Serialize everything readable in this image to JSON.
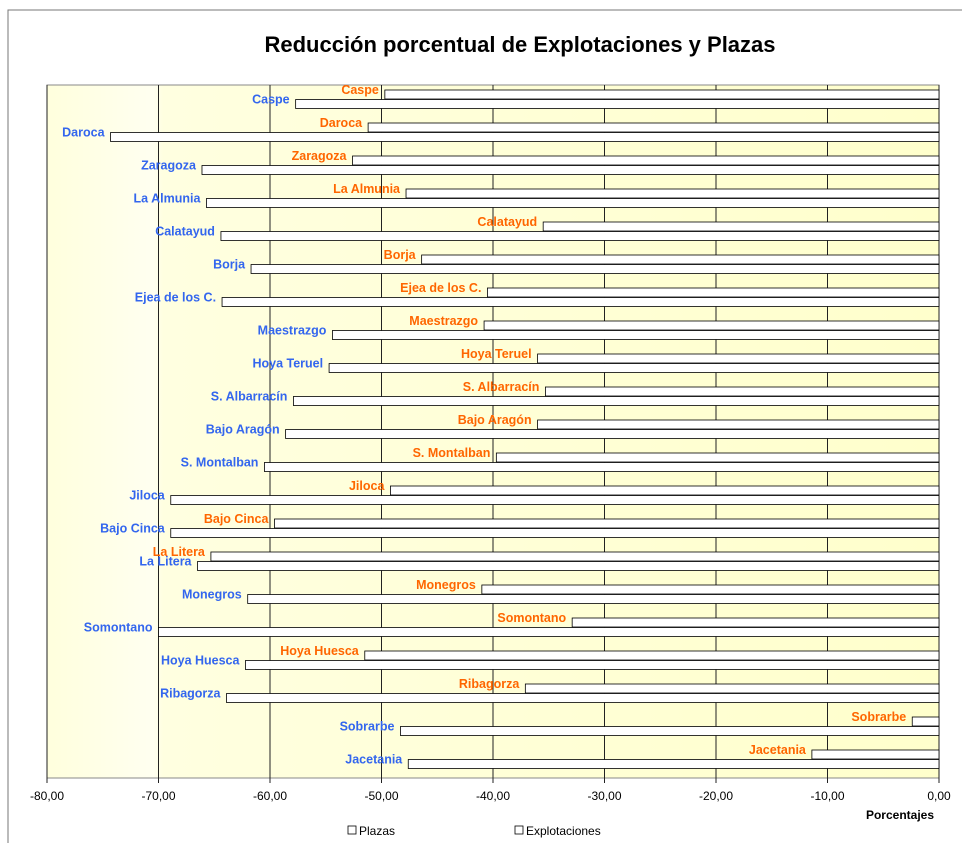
{
  "chart_data": {
    "type": "hbar",
    "title": "Reducción porcentual de Explotaciones y Plazas",
    "x_label": "Porcentajes",
    "categories": [
      "Caspe",
      "Daroca",
      "Zaragoza",
      "La Almunia",
      "Calatayud",
      "Borja",
      "Ejea de los C.",
      "Maestrazgo",
      "Hoya  Teruel",
      "S. Albarracín",
      "Bajo Aragón",
      "S. Montalban",
      "Jiloca",
      "Bajo Cinca",
      "La Litera",
      "Monegros",
      "Somontano",
      "Hoya  Huesca",
      "Ribagorza",
      "Sobrarbe",
      "Jacetania"
    ],
    "series": [
      {
        "name": "Explotaciones",
        "color": "#ffffff",
        "label_color": "#ff6600",
        "values": [
          -49.7,
          -51.2,
          -52.6,
          -47.8,
          -35.5,
          -46.4,
          -40.5,
          -40.8,
          -36.0,
          -35.3,
          -36.0,
          -39.7,
          -49.2,
          -59.6,
          -65.3,
          -41.0,
          -32.9,
          -51.5,
          -37.1,
          -2.4,
          -11.4
        ]
      },
      {
        "name": "Plazas",
        "color": "#ffffff",
        "label_color": "#3366ee",
        "values": [
          -57.7,
          -74.3,
          -66.1,
          -65.7,
          -64.4,
          -61.7,
          -64.3,
          -54.4,
          -54.7,
          -57.9,
          -58.6,
          -60.5,
          -68.9,
          -68.9,
          -66.5,
          -62.0,
          -70.0,
          -62.2,
          -63.9,
          -48.3,
          -47.6
        ]
      }
    ],
    "legend_order": [
      1,
      0
    ],
    "xlim": [
      -80,
      0
    ],
    "xticks": [
      {
        "value": -80,
        "label": "-80,00"
      },
      {
        "value": -70,
        "label": "-70,00"
      },
      {
        "value": -60,
        "label": "-60,00"
      },
      {
        "value": -50,
        "label": "-50,00"
      },
      {
        "value": -40,
        "label": "-40,00"
      },
      {
        "value": -30,
        "label": "-30,00"
      },
      {
        "value": -20,
        "label": "-20,00"
      },
      {
        "value": -10,
        "label": "-10,00"
      },
      {
        "value": 0,
        "label": "0,00"
      }
    ],
    "grid": true
  }
}
